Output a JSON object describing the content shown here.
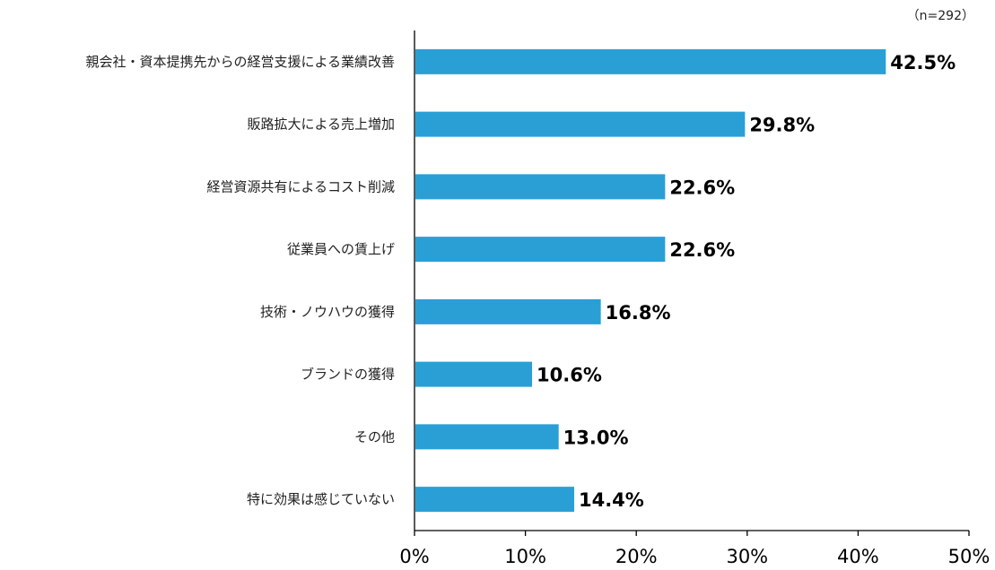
{
  "chart_data": {
    "type": "bar",
    "orientation": "horizontal",
    "note": "（n=292）",
    "categories": [
      "親会社・資本提携先からの経営支援による業績改善",
      "販路拡大による売上増加",
      "経営資源共有によるコスト削減",
      "従業員への賃上げ",
      "技術・ノウハウの獲得",
      "ブランドの獲得",
      "その他",
      "特に効果は感じていない"
    ],
    "values": [
      42.5,
      29.8,
      22.6,
      22.6,
      16.8,
      10.6,
      13.0,
      14.4
    ],
    "value_labels": [
      "42.5%",
      "29.8%",
      "22.6%",
      "22.6%",
      "16.8%",
      "10.6%",
      "13.0%",
      "14.4%"
    ],
    "xlim": [
      0,
      50
    ],
    "x_ticks": [
      "0%",
      "10%",
      "20%",
      "30%",
      "40%",
      "50%"
    ],
    "grid": false,
    "bar_color": "#2a9fd6"
  }
}
